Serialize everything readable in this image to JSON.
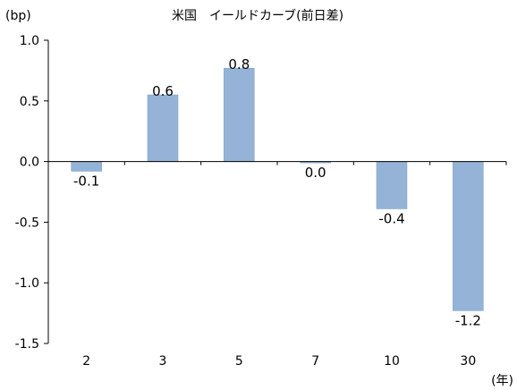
{
  "chart_data": {
    "type": "bar",
    "title": "米国　イールドカーブ(前日差)",
    "ylabel": "(bp)",
    "xlabel": "(年)",
    "categories": [
      "2",
      "3",
      "5",
      "7",
      "10",
      "30"
    ],
    "values": [
      -0.08,
      0.55,
      0.77,
      -0.01,
      -0.39,
      -1.23
    ],
    "data_labels": [
      "-0.1",
      "0.6",
      "0.8",
      "0.0",
      "-0.4",
      "-1.2"
    ],
    "ylim": [
      -1.5,
      1.0
    ],
    "y_ticks": [
      "1.0",
      "0.5",
      "0.0",
      "-0.5",
      "-1.0",
      "-1.5"
    ],
    "y_tick_values": [
      1.0,
      0.5,
      0.0,
      -0.5,
      -1.0,
      -1.5
    ],
    "grid": false,
    "bar_color": "#95b3d7",
    "bar_edge_color": "#7a9cc9"
  }
}
